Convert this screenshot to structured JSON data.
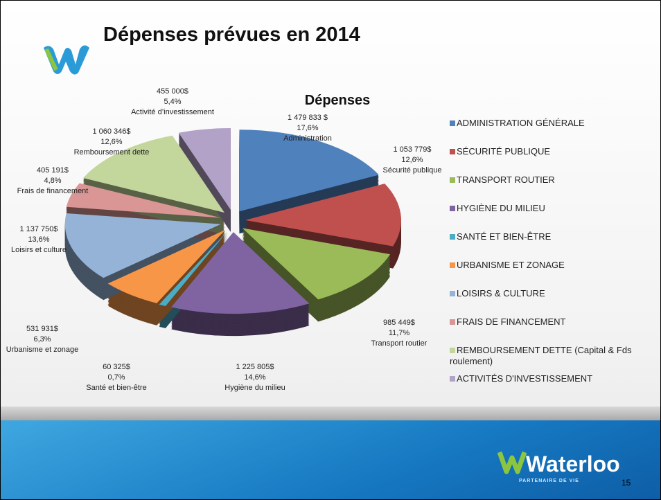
{
  "slide": {
    "title": "Dépenses prévues en 2014",
    "page_number": "15",
    "logo_text": "Waterloo",
    "logo_tagline": "PARTENAIRE DE VIE"
  },
  "chart_data": {
    "type": "pie",
    "title": "Dépenses",
    "legend": "right",
    "categories": [
      "ADMINISTRATION GÉNÉRALE",
      "SÉCURITÉ PUBLIQUE",
      "TRANSPORT ROUTIER",
      "HYGIÈNE DU MILIEU",
      "SANTÉ ET BIEN-ÊTRE",
      "URBANISME ET ZONAGE",
      "LOISIRS & CULTURE",
      "FRAIS DE FINANCEMENT",
      "REMBOURSEMENT DETTE (Capital & Fds roulement)",
      "ACTIVITÉS D'INVESTISSEMENT"
    ],
    "slice_labels": [
      "Administration",
      "Sécurité publique",
      "Transport routier",
      "Hygiène du milieu",
      "Santé et bien-être",
      "Urbanisme et zonage",
      "Loisirs et culture",
      "Frais de financement",
      "Remboursement dette",
      "Activité d’investissement"
    ],
    "values": [
      1479833,
      1053779,
      985449,
      1225805,
      60325,
      531931,
      1137750,
      405191,
      1060346,
      455000
    ],
    "value_labels": [
      "1 479 833 $",
      "1 053 779$",
      "985 449$",
      "1 225 805$",
      "60 325$",
      "531 931$",
      "1 137 750$",
      "405 191$",
      "1 060 346$",
      "455 000$"
    ],
    "percentages": [
      17.6,
      12.6,
      11.7,
      14.6,
      0.7,
      6.3,
      13.6,
      4.8,
      12.6,
      5.4
    ],
    "percentage_labels": [
      "17,6%",
      "12,6%",
      "11,7%",
      "14,6%",
      "0,7%",
      "6,3%",
      "13,6%",
      "4,8%",
      "12,6%",
      "5,4%"
    ],
    "colors": [
      "#4f81bd",
      "#c0504d",
      "#9bbb59",
      "#8064a2",
      "#4bacc6",
      "#f79646",
      "#95b3d7",
      "#d99694",
      "#c3d69b",
      "#b3a2c7"
    ]
  }
}
